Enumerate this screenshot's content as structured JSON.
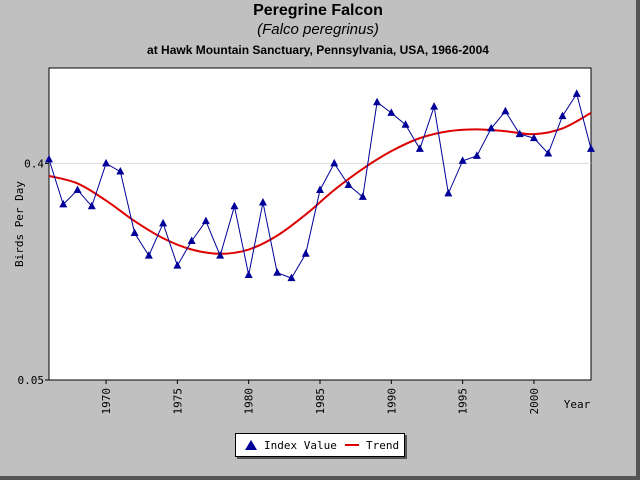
{
  "chart_data": {
    "type": "line",
    "title": "Peregrine Falcon",
    "subtitle": "(Falco peregrinus)",
    "subtitle2": "at Hawk Mountain Sanctuary, Pennsylvania, USA, 1966-2004",
    "xlabel": "Year",
    "ylabel": "Birds Per Day",
    "xlim": [
      1966,
      2004
    ],
    "ylim": [
      0.05,
      1.0
    ],
    "yscale": "log",
    "xticks": [
      1970,
      1975,
      1980,
      1985,
      1990,
      1995,
      2000
    ],
    "yticks": [
      0.05,
      0.4
    ],
    "grid": "horizontal",
    "legend_position": "bottom",
    "colors": {
      "index": "#000099",
      "trend": "#dd0000"
    },
    "series": [
      {
        "name": "Index Value",
        "marker": "triangle",
        "x": [
          1966,
          1967,
          1968,
          1969,
          1970,
          1971,
          1972,
          1973,
          1974,
          1975,
          1976,
          1977,
          1978,
          1979,
          1980,
          1981,
          1982,
          1983,
          1984,
          1985,
          1986,
          1987,
          1988,
          1989,
          1990,
          1991,
          1992,
          1993,
          1994,
          1995,
          1996,
          1997,
          1998,
          1999,
          2000,
          2001,
          2002,
          2003,
          2004
        ],
        "y": [
          0.416,
          0.27,
          0.31,
          0.265,
          0.4,
          0.37,
          0.205,
          0.165,
          0.225,
          0.15,
          0.19,
          0.23,
          0.165,
          0.265,
          0.137,
          0.275,
          0.14,
          0.133,
          0.168,
          0.31,
          0.4,
          0.325,
          0.29,
          0.72,
          0.65,
          0.58,
          0.46,
          0.69,
          0.3,
          0.41,
          0.43,
          0.56,
          0.66,
          0.53,
          0.51,
          0.44,
          0.63,
          0.78,
          0.46
        ]
      },
      {
        "name": "Trend",
        "x": [
          1966,
          1968,
          1970,
          1972,
          1974,
          1976,
          1978,
          1980,
          1982,
          1984,
          1986,
          1988,
          1990,
          1992,
          1994,
          1996,
          1998,
          2000,
          2002,
          2004
        ],
        "y": [
          0.355,
          0.33,
          0.28,
          0.23,
          0.195,
          0.175,
          0.168,
          0.175,
          0.2,
          0.245,
          0.31,
          0.38,
          0.45,
          0.51,
          0.545,
          0.555,
          0.545,
          0.53,
          0.56,
          0.65
        ]
      }
    ]
  }
}
